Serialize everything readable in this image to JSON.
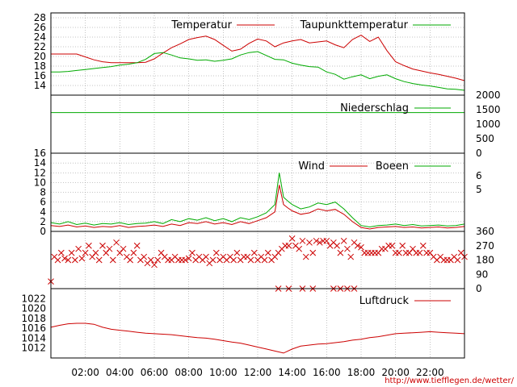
{
  "credit_url": "http://www.tiefflegen.de/wetter/",
  "x_axis": {
    "ticks": [
      "02:00",
      "04:00",
      "06:00",
      "08:00",
      "10:00",
      "12:00",
      "14:00",
      "16:00",
      "18:00",
      "20:00",
      "22:00"
    ],
    "range_hours": [
      0,
      24
    ]
  },
  "colors": {
    "red": "#cc0000",
    "green": "#00aa00",
    "grid": "#888888",
    "frame": "#000000"
  },
  "chart_data": [
    {
      "type": "line",
      "panel": "temperature",
      "ylim": [
        12,
        29
      ],
      "yticks": [
        14,
        16,
        18,
        20,
        22,
        24,
        26,
        28
      ],
      "grid": true,
      "legend_placement": "top",
      "x": [
        0,
        0.5,
        1,
        1.5,
        2,
        2.5,
        3,
        3.5,
        4,
        4.5,
        5,
        5.5,
        6,
        6.5,
        7,
        7.5,
        8,
        8.5,
        9,
        9.5,
        10,
        10.5,
        11,
        11.5,
        12,
        12.5,
        13,
        13.5,
        14,
        14.5,
        15,
        15.5,
        16,
        16.5,
        17,
        17.5,
        18,
        18.5,
        19,
        19.5,
        20,
        20.5,
        21,
        21.5,
        22,
        22.5,
        23,
        23.5,
        24
      ],
      "series": [
        {
          "name": "Temperatur",
          "color": "#cc0000",
          "values": [
            20.5,
            20.5,
            20.5,
            20.5,
            19.9,
            19.3,
            18.9,
            18.7,
            18.7,
            18.7,
            18.7,
            18.8,
            19.5,
            20.7,
            21.8,
            22.6,
            23.5,
            23.9,
            24.2,
            23.5,
            22.3,
            21.1,
            21.5,
            22.7,
            23.6,
            23.2,
            22.0,
            22.8,
            23.2,
            23.5,
            22.8,
            23.0,
            23.2,
            22.4,
            21.8,
            23.5,
            24.4,
            23.1,
            24.0,
            21.2,
            18.9,
            18.1,
            17.4,
            17.0,
            16.6,
            16.3,
            15.9,
            15.5,
            15.0
          ]
        },
        {
          "name": "Taupunkttemperatur",
          "color": "#00aa00",
          "values": [
            16.8,
            16.8,
            16.9,
            17.1,
            17.3,
            17.5,
            17.7,
            17.9,
            18.2,
            18.4,
            18.7,
            19.4,
            20.6,
            20.8,
            20.3,
            19.7,
            19.5,
            19.2,
            19.3,
            19.0,
            19.2,
            19.5,
            20.3,
            20.8,
            21.0,
            20.2,
            19.4,
            19.3,
            18.6,
            18.2,
            17.9,
            17.8,
            16.8,
            16.3,
            15.3,
            15.8,
            16.2,
            15.4,
            15.9,
            16.2,
            15.4,
            14.8,
            14.4,
            14.1,
            13.9,
            13.6,
            13.3,
            13.2,
            13.0
          ]
        }
      ]
    },
    {
      "type": "line",
      "panel": "precipitation",
      "ylim": [
        0,
        2000
      ],
      "yticks": [
        0,
        500,
        1000,
        1500,
        2000
      ],
      "legend_placement": "top-right",
      "series": [
        {
          "name": "Niederschlag",
          "color": "#00aa00",
          "values": [
            1400
          ]
        }
      ]
    },
    {
      "type": "line",
      "panel": "wind",
      "ylim": [
        0,
        16
      ],
      "yticks": [
        0,
        2,
        4,
        6,
        8,
        10,
        12,
        14,
        16
      ],
      "right_ticks": [
        "6",
        "5"
      ],
      "grid": true,
      "legend_placement": "top-right",
      "x": [
        0,
        0.5,
        1,
        1.5,
        2,
        2.5,
        3,
        3.5,
        4,
        4.5,
        5,
        5.5,
        6,
        6.5,
        7,
        7.5,
        8,
        8.5,
        9,
        9.5,
        10,
        10.5,
        11,
        11.5,
        12,
        12.5,
        13,
        13.25,
        13.5,
        13.75,
        14,
        14.5,
        15,
        15.5,
        16,
        16.5,
        17,
        17.5,
        18,
        18.5,
        19,
        19.5,
        20,
        20.5,
        21,
        21.5,
        22,
        22.5,
        23,
        23.5,
        24
      ],
      "series": [
        {
          "name": "Wind",
          "color": "#cc0000",
          "values": [
            1.2,
            1.0,
            1.3,
            0.9,
            1.1,
            0.8,
            1.0,
            0.9,
            1.2,
            0.8,
            1.0,
            1.1,
            1.3,
            1.0,
            1.5,
            1.2,
            1.8,
            1.6,
            2.0,
            1.5,
            1.8,
            1.4,
            2.0,
            1.6,
            2.2,
            2.8,
            4.0,
            9.5,
            5.5,
            4.8,
            4.2,
            3.5,
            3.8,
            4.6,
            4.2,
            4.5,
            3.5,
            2.0,
            0.8,
            0.5,
            0.8,
            0.9,
            1.0,
            0.8,
            0.9,
            0.7,
            0.8,
            0.9,
            0.7,
            0.8,
            1.0
          ]
        },
        {
          "name": "Boeen",
          "color": "#00aa00",
          "values": [
            1.8,
            1.5,
            2.0,
            1.4,
            1.7,
            1.3,
            1.6,
            1.5,
            1.8,
            1.4,
            1.6,
            1.7,
            2.0,
            1.6,
            2.4,
            2.0,
            2.6,
            2.3,
            2.8,
            2.2,
            2.6,
            2.0,
            2.8,
            2.4,
            3.0,
            3.8,
            5.5,
            12.0,
            7.0,
            6.2,
            5.5,
            4.6,
            5.0,
            5.8,
            5.5,
            6.0,
            4.6,
            2.8,
            1.2,
            0.9,
            1.2,
            1.3,
            1.5,
            1.2,
            1.4,
            1.1,
            1.2,
            1.3,
            1.1,
            1.2,
            1.5
          ]
        }
      ]
    },
    {
      "type": "scatter",
      "panel": "wind_direction",
      "ylim": [
        0,
        360
      ],
      "yticks": [
        0,
        90,
        180,
        270,
        360
      ],
      "marker": "x",
      "color": "#cc0000",
      "x": [
        0,
        0.2,
        0.4,
        0.6,
        0.8,
        1,
        1.2,
        1.4,
        1.6,
        1.8,
        2,
        2.2,
        2.4,
        2.6,
        2.8,
        3,
        3.2,
        3.4,
        3.6,
        3.8,
        4,
        4.2,
        4.4,
        4.6,
        4.8,
        5,
        5.2,
        5.4,
        5.6,
        5.8,
        6,
        6.2,
        6.4,
        6.6,
        6.8,
        7,
        7.2,
        7.4,
        7.6,
        7.8,
        8,
        8.2,
        8.4,
        8.6,
        8.8,
        9,
        9.2,
        9.4,
        9.6,
        9.8,
        10,
        10.2,
        10.4,
        10.6,
        10.8,
        11,
        11.2,
        11.4,
        11.6,
        11.8,
        12,
        12.2,
        12.4,
        12.6,
        12.8,
        13,
        13.2,
        13.4,
        13.6,
        13.8,
        14,
        14.2,
        14.4,
        14.6,
        14.8,
        15,
        15.2,
        15.4,
        15.6,
        15.8,
        16,
        16.2,
        16.4,
        16.6,
        16.8,
        17,
        17.2,
        17.4,
        17.6,
        17.8,
        18,
        18.2,
        18.4,
        18.6,
        18.8,
        19,
        19.2,
        19.4,
        19.6,
        19.8,
        20,
        20.2,
        20.4,
        20.6,
        20.8,
        21,
        21.2,
        21.4,
        21.6,
        21.8,
        22,
        22.2,
        22.4,
        22.6,
        22.8,
        23,
        23.2,
        23.4,
        23.6,
        23.8,
        24
      ],
      "values": [
        45,
        200,
        180,
        225,
        190,
        180,
        225,
        180,
        250,
        190,
        225,
        270,
        200,
        225,
        180,
        270,
        225,
        250,
        180,
        290,
        225,
        250,
        200,
        180,
        225,
        270,
        180,
        200,
        160,
        180,
        150,
        180,
        225,
        200,
        180,
        180,
        200,
        180,
        180,
        180,
        190,
        225,
        180,
        200,
        180,
        200,
        160,
        180,
        225,
        180,
        200,
        180,
        200,
        180,
        225,
        180,
        200,
        200,
        180,
        225,
        180,
        200,
        180,
        225,
        180,
        200,
        225,
        250,
        270,
        270,
        315,
        270,
        250,
        300,
        200,
        290,
        225,
        300,
        290,
        300,
        300,
        270,
        290,
        270,
        225,
        300,
        250,
        200,
        290,
        270,
        260,
        225,
        225,
        225,
        225,
        225,
        250,
        250,
        270,
        270,
        225,
        225,
        270,
        225,
        225,
        250,
        225,
        225,
        270,
        225,
        225,
        200,
        180,
        200,
        180,
        180,
        180,
        200,
        180,
        225,
        200
      ],
      "markers_at_zero_x": [
        13.2,
        13.8,
        14.6,
        15.2,
        16.4,
        16.8,
        17.2,
        17.6
      ]
    },
    {
      "type": "line",
      "panel": "pressure",
      "ylim": [
        1010,
        1024
      ],
      "yticks": [
        1012,
        1014,
        1016,
        1018,
        1020,
        1022
      ],
      "legend_placement": "top-right",
      "x": [
        0,
        0.5,
        1,
        1.5,
        2,
        2.5,
        3,
        3.5,
        4,
        4.5,
        5,
        5.5,
        6,
        6.5,
        7,
        7.5,
        8,
        8.5,
        9,
        9.5,
        10,
        10.5,
        11,
        11.5,
        12,
        12.5,
        13,
        13.5,
        14,
        14.5,
        15,
        15.5,
        16,
        16.5,
        17,
        17.5,
        18,
        18.5,
        19,
        19.5,
        20,
        20.5,
        21,
        21.5,
        22,
        22.5,
        23,
        23.5,
        24
      ],
      "series": [
        {
          "name": "Luftdruck",
          "color": "#cc0000",
          "values": [
            1016.2,
            1016.6,
            1016.9,
            1017.0,
            1017.0,
            1016.8,
            1016.2,
            1015.8,
            1015.6,
            1015.4,
            1015.2,
            1015.0,
            1014.9,
            1014.8,
            1014.7,
            1014.5,
            1014.3,
            1014.1,
            1014.0,
            1013.8,
            1013.5,
            1013.2,
            1013.0,
            1012.6,
            1012.2,
            1011.8,
            1011.4,
            1011.0,
            1011.8,
            1012.4,
            1012.6,
            1012.8,
            1012.9,
            1013.1,
            1013.3,
            1013.6,
            1013.8,
            1014.1,
            1014.3,
            1014.6,
            1014.9,
            1015.0,
            1015.1,
            1015.2,
            1015.3,
            1015.2,
            1015.1,
            1015.0,
            1014.9
          ]
        }
      ]
    }
  ]
}
